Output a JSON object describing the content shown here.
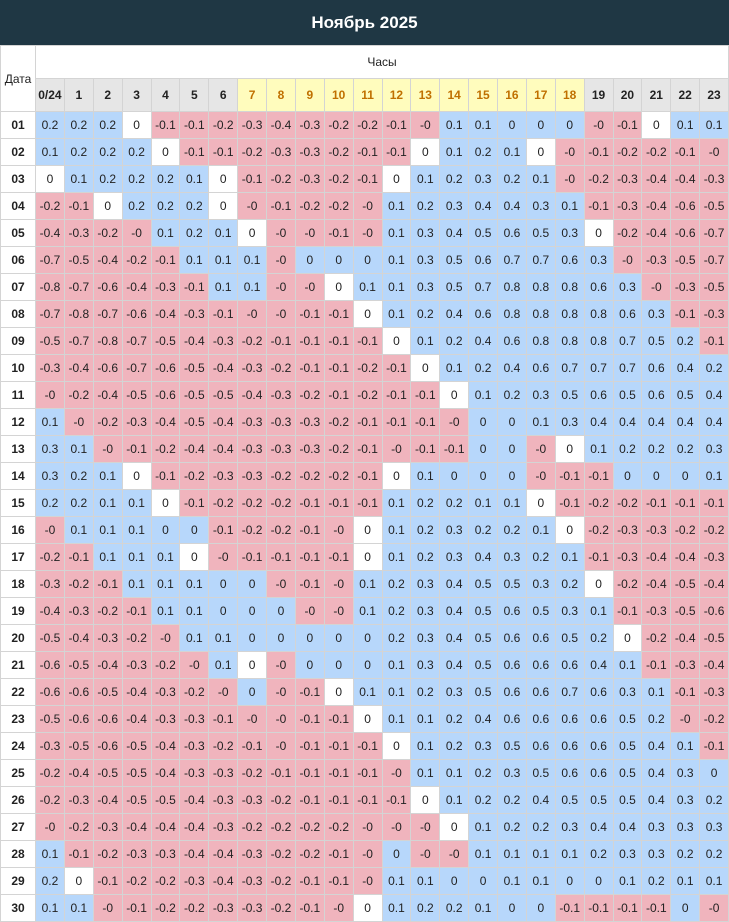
{
  "title": "Ноябрь 2025",
  "date_label": "Дата",
  "hours_label": "Часы",
  "hours": [
    "0/24",
    "1",
    "2",
    "3",
    "4",
    "5",
    "6",
    "7",
    "8",
    "9",
    "10",
    "11",
    "12",
    "13",
    "14",
    "15",
    "16",
    "17",
    "18",
    "19",
    "20",
    "21",
    "22",
    "23"
  ],
  "highlight_hours": [
    "7",
    "8",
    "9",
    "10",
    "11",
    "12",
    "13",
    "14",
    "15",
    "16",
    "17",
    "18"
  ],
  "colors": {
    "header_bg": "#1f3744",
    "positive": "#b7d7fb",
    "negative": "#f0b4bd",
    "day_hour": "#fffcbd",
    "night_hour": "#e6e6e6"
  },
  "rows": [
    {
      "date": "01",
      "values": [
        "0.2",
        "0.2",
        "0.2",
        "0",
        "-0.1",
        "-0.1",
        "-0.2",
        "-0.3",
        "-0.4",
        "-0.3",
        "-0.2",
        "-0.2",
        "-0.1",
        "-0",
        "0.1",
        "0.1",
        "0",
        "0",
        "0",
        "-0",
        "-0.1",
        "0",
        "0.1",
        "0.1"
      ]
    },
    {
      "date": "02",
      "values": [
        "0.1",
        "0.2",
        "0.2",
        "0.2",
        "0",
        "-0.1",
        "-0.1",
        "-0.2",
        "-0.3",
        "-0.3",
        "-0.2",
        "-0.1",
        "-0.1",
        "0",
        "0.1",
        "0.2",
        "0.1",
        "0",
        "-0",
        "-0.1",
        "-0.2",
        "-0.2",
        "-0.1",
        "-0"
      ]
    },
    {
      "date": "03",
      "values": [
        "0",
        "0.1",
        "0.2",
        "0.2",
        "0.2",
        "0.1",
        "0",
        "-0.1",
        "-0.2",
        "-0.3",
        "-0.2",
        "-0.1",
        "0",
        "0.1",
        "0.2",
        "0.3",
        "0.2",
        "0.1",
        "-0",
        "-0.2",
        "-0.3",
        "-0.4",
        "-0.4",
        "-0.3"
      ]
    },
    {
      "date": "04",
      "values": [
        "-0.2",
        "-0.1",
        "0",
        "0.2",
        "0.2",
        "0.2",
        "0",
        "-0",
        "-0.1",
        "-0.2",
        "-0.2",
        "-0",
        "0.1",
        "0.2",
        "0.3",
        "0.4",
        "0.4",
        "0.3",
        "0.1",
        "-0.1",
        "-0.3",
        "-0.4",
        "-0.6",
        "-0.5"
      ]
    },
    {
      "date": "05",
      "values": [
        "-0.4",
        "-0.3",
        "-0.2",
        "-0",
        "0.1",
        "0.2",
        "0.1",
        "0",
        "-0",
        "-0",
        "-0.1",
        "-0",
        "0.1",
        "0.3",
        "0.4",
        "0.5",
        "0.6",
        "0.5",
        "0.3",
        "0",
        "-0.2",
        "-0.4",
        "-0.6",
        "-0.7"
      ]
    },
    {
      "date": "06",
      "values": [
        "-0.7",
        "-0.5",
        "-0.4",
        "-0.2",
        "-0.1",
        "0.1",
        "0.1",
        "0.1",
        "-0",
        "0",
        "0",
        "0",
        "0.1",
        "0.3",
        "0.5",
        "0.6",
        "0.7",
        "0.7",
        "0.6",
        "0.3",
        "-0",
        "-0.3",
        "-0.5",
        "-0.7"
      ]
    },
    {
      "date": "07",
      "values": [
        "-0.8",
        "-0.7",
        "-0.6",
        "-0.4",
        "-0.3",
        "-0.1",
        "0.1",
        "0.1",
        "-0",
        "-0",
        "0",
        "0.1",
        "0.1",
        "0.3",
        "0.5",
        "0.7",
        "0.8",
        "0.8",
        "0.8",
        "0.6",
        "0.3",
        "-0",
        "-0.3",
        "-0.5"
      ]
    },
    {
      "date": "08",
      "values": [
        "-0.7",
        "-0.8",
        "-0.7",
        "-0.6",
        "-0.4",
        "-0.3",
        "-0.1",
        "-0",
        "-0",
        "-0.1",
        "-0.1",
        "0",
        "0.1",
        "0.2",
        "0.4",
        "0.6",
        "0.8",
        "0.8",
        "0.8",
        "0.8",
        "0.6",
        "0.3",
        "-0.1",
        "-0.3"
      ]
    },
    {
      "date": "09",
      "values": [
        "-0.5",
        "-0.7",
        "-0.8",
        "-0.7",
        "-0.5",
        "-0.4",
        "-0.3",
        "-0.2",
        "-0.1",
        "-0.1",
        "-0.1",
        "-0.1",
        "0",
        "0.1",
        "0.2",
        "0.4",
        "0.6",
        "0.8",
        "0.8",
        "0.8",
        "0.7",
        "0.5",
        "0.2",
        "-0.1"
      ]
    },
    {
      "date": "10",
      "values": [
        "-0.3",
        "-0.4",
        "-0.6",
        "-0.7",
        "-0.6",
        "-0.5",
        "-0.4",
        "-0.3",
        "-0.2",
        "-0.1",
        "-0.1",
        "-0.2",
        "-0.1",
        "0",
        "0.1",
        "0.2",
        "0.4",
        "0.6",
        "0.7",
        "0.7",
        "0.7",
        "0.6",
        "0.4",
        "0.2"
      ]
    },
    {
      "date": "11",
      "values": [
        "-0",
        "-0.2",
        "-0.4",
        "-0.5",
        "-0.6",
        "-0.5",
        "-0.5",
        "-0.4",
        "-0.3",
        "-0.2",
        "-0.1",
        "-0.2",
        "-0.1",
        "-0.1",
        "0",
        "0.1",
        "0.2",
        "0.3",
        "0.5",
        "0.6",
        "0.5",
        "0.6",
        "0.5",
        "0.4"
      ]
    },
    {
      "date": "12",
      "values": [
        "0.1",
        "-0",
        "-0.2",
        "-0.3",
        "-0.4",
        "-0.5",
        "-0.4",
        "-0.3",
        "-0.3",
        "-0.3",
        "-0.2",
        "-0.1",
        "-0.1",
        "-0.1",
        "-0",
        "0",
        "0",
        "0.1",
        "0.3",
        "0.4",
        "0.4",
        "0.4",
        "0.4",
        "0.4"
      ]
    },
    {
      "date": "13",
      "values": [
        "0.3",
        "0.1",
        "-0",
        "-0.1",
        "-0.2",
        "-0.4",
        "-0.4",
        "-0.3",
        "-0.3",
        "-0.3",
        "-0.2",
        "-0.1",
        "-0",
        "-0.1",
        "-0.1",
        "0",
        "0",
        "-0",
        "0",
        "0.1",
        "0.2",
        "0.2",
        "0.2",
        "0.3"
      ]
    },
    {
      "date": "14",
      "values": [
        "0.3",
        "0.2",
        "0.1",
        "0",
        "-0.1",
        "-0.2",
        "-0.3",
        "-0.3",
        "-0.2",
        "-0.2",
        "-0.2",
        "-0.1",
        "0",
        "0.1",
        "0",
        "0",
        "0",
        "-0",
        "-0.1",
        "-0.1",
        "0",
        "0",
        "0",
        "0.1"
      ]
    },
    {
      "date": "15",
      "values": [
        "0.2",
        "0.2",
        "0.1",
        "0.1",
        "0",
        "-0.1",
        "-0.2",
        "-0.2",
        "-0.2",
        "-0.1",
        "-0.1",
        "-0.1",
        "0.1",
        "0.2",
        "0.2",
        "0.1",
        "0.1",
        "0",
        "-0.1",
        "-0.2",
        "-0.2",
        "-0.1",
        "-0.1",
        "-0.1"
      ]
    },
    {
      "date": "16",
      "values": [
        "-0",
        "0.1",
        "0.1",
        "0.1",
        "0",
        "0",
        "-0.1",
        "-0.2",
        "-0.2",
        "-0.1",
        "-0",
        "0",
        "0.1",
        "0.2",
        "0.3",
        "0.2",
        "0.2",
        "0.1",
        "0",
        "-0.2",
        "-0.3",
        "-0.3",
        "-0.2",
        "-0.2"
      ]
    },
    {
      "date": "17",
      "values": [
        "-0.2",
        "-0.1",
        "0.1",
        "0.1",
        "0.1",
        "0",
        "-0",
        "-0.1",
        "-0.1",
        "-0.1",
        "-0.1",
        "0",
        "0.1",
        "0.2",
        "0.3",
        "0.4",
        "0.3",
        "0.2",
        "0.1",
        "-0.1",
        "-0.3",
        "-0.4",
        "-0.4",
        "-0.3"
      ]
    },
    {
      "date": "18",
      "values": [
        "-0.3",
        "-0.2",
        "-0.1",
        "0.1",
        "0.1",
        "0.1",
        "0",
        "0",
        "-0",
        "-0.1",
        "-0",
        "0.1",
        "0.2",
        "0.3",
        "0.4",
        "0.5",
        "0.5",
        "0.3",
        "0.2",
        "0",
        "-0.2",
        "-0.4",
        "-0.5",
        "-0.4"
      ]
    },
    {
      "date": "19",
      "values": [
        "-0.4",
        "-0.3",
        "-0.2",
        "-0.1",
        "0.1",
        "0.1",
        "0",
        "0",
        "0",
        "-0",
        "-0",
        "0.1",
        "0.2",
        "0.3",
        "0.4",
        "0.5",
        "0.6",
        "0.5",
        "0.3",
        "0.1",
        "-0.1",
        "-0.3",
        "-0.5",
        "-0.6"
      ]
    },
    {
      "date": "20",
      "values": [
        "-0.5",
        "-0.4",
        "-0.3",
        "-0.2",
        "-0",
        "0.1",
        "0.1",
        "0",
        "0",
        "0",
        "0",
        "0",
        "0.2",
        "0.3",
        "0.4",
        "0.5",
        "0.6",
        "0.6",
        "0.5",
        "0.2",
        "0",
        "-0.2",
        "-0.4",
        "-0.5"
      ]
    },
    {
      "date": "21",
      "values": [
        "-0.6",
        "-0.5",
        "-0.4",
        "-0.3",
        "-0.2",
        "-0",
        "0.1",
        "0",
        "-0",
        "0",
        "0",
        "0",
        "0.1",
        "0.3",
        "0.4",
        "0.5",
        "0.6",
        "0.6",
        "0.6",
        "0.4",
        "0.1",
        "-0.1",
        "-0.3",
        "-0.4"
      ]
    },
    {
      "date": "22",
      "values": [
        "-0.6",
        "-0.6",
        "-0.5",
        "-0.4",
        "-0.3",
        "-0.2",
        "-0",
        "0",
        "-0",
        "-0.1",
        "0",
        "0.1",
        "0.1",
        "0.2",
        "0.3",
        "0.5",
        "0.6",
        "0.6",
        "0.7",
        "0.6",
        "0.3",
        "0.1",
        "-0.1",
        "-0.3"
      ]
    },
    {
      "date": "23",
      "values": [
        "-0.5",
        "-0.6",
        "-0.6",
        "-0.4",
        "-0.3",
        "-0.3",
        "-0.1",
        "-0",
        "-0",
        "-0.1",
        "-0.1",
        "0",
        "0.1",
        "0.1",
        "0.2",
        "0.4",
        "0.6",
        "0.6",
        "0.6",
        "0.6",
        "0.5",
        "0.2",
        "-0",
        "-0.2"
      ]
    },
    {
      "date": "24",
      "values": [
        "-0.3",
        "-0.5",
        "-0.6",
        "-0.5",
        "-0.4",
        "-0.3",
        "-0.2",
        "-0.1",
        "-0",
        "-0.1",
        "-0.1",
        "-0.1",
        "0",
        "0.1",
        "0.2",
        "0.3",
        "0.5",
        "0.6",
        "0.6",
        "0.6",
        "0.5",
        "0.4",
        "0.1",
        "-0.1"
      ]
    },
    {
      "date": "25",
      "values": [
        "-0.2",
        "-0.4",
        "-0.5",
        "-0.5",
        "-0.4",
        "-0.3",
        "-0.3",
        "-0.2",
        "-0.1",
        "-0.1",
        "-0.1",
        "-0.1",
        "-0",
        "0.1",
        "0.1",
        "0.2",
        "0.3",
        "0.5",
        "0.6",
        "0.6",
        "0.5",
        "0.4",
        "0.3",
        "0"
      ]
    },
    {
      "date": "26",
      "values": [
        "-0.2",
        "-0.3",
        "-0.4",
        "-0.5",
        "-0.5",
        "-0.4",
        "-0.3",
        "-0.3",
        "-0.2",
        "-0.1",
        "-0.1",
        "-0.1",
        "-0.1",
        "0",
        "0.1",
        "0.2",
        "0.2",
        "0.4",
        "0.5",
        "0.5",
        "0.5",
        "0.4",
        "0.3",
        "0.2"
      ]
    },
    {
      "date": "27",
      "values": [
        "-0",
        "-0.2",
        "-0.3",
        "-0.4",
        "-0.4",
        "-0.4",
        "-0.3",
        "-0.2",
        "-0.2",
        "-0.2",
        "-0.2",
        "-0",
        "-0",
        "-0",
        "0",
        "0.1",
        "0.2",
        "0.2",
        "0.3",
        "0.4",
        "0.4",
        "0.3",
        "0.3",
        "0.3"
      ]
    },
    {
      "date": "28",
      "values": [
        "0.1",
        "-0.1",
        "-0.2",
        "-0.3",
        "-0.3",
        "-0.4",
        "-0.4",
        "-0.3",
        "-0.2",
        "-0.2",
        "-0.1",
        "-0",
        "0",
        "-0",
        "-0",
        "0.1",
        "0.1",
        "0.1",
        "0.1",
        "0.2",
        "0.3",
        "0.3",
        "0.2",
        "0.2"
      ]
    },
    {
      "date": "29",
      "values": [
        "0.2",
        "0",
        "-0.1",
        "-0.2",
        "-0.2",
        "-0.3",
        "-0.4",
        "-0.3",
        "-0.2",
        "-0.1",
        "-0.1",
        "-0",
        "0.1",
        "0.1",
        "0",
        "0",
        "0.1",
        "0.1",
        "0",
        "0",
        "0.1",
        "0.2",
        "0.1",
        "0.1"
      ]
    },
    {
      "date": "30",
      "values": [
        "0.1",
        "0.1",
        "-0",
        "-0.1",
        "-0.2",
        "-0.2",
        "-0.3",
        "-0.3",
        "-0.2",
        "-0.1",
        "-0",
        "0",
        "0.1",
        "0.2",
        "0.2",
        "0.1",
        "0",
        "0",
        "-0.1",
        "-0.1",
        "-0.1",
        "-0.1",
        "0",
        "-0"
      ]
    }
  ]
}
